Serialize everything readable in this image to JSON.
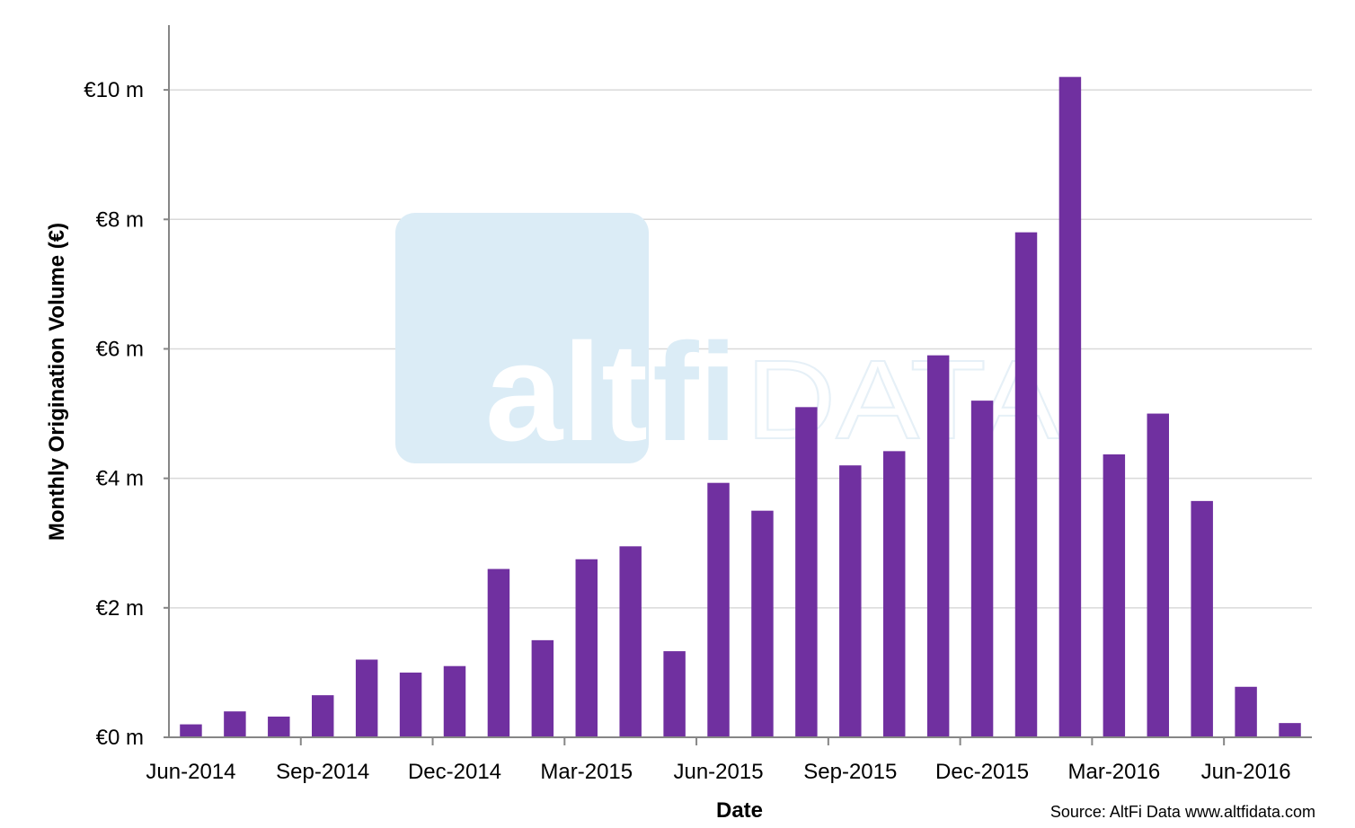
{
  "chart_data": {
    "type": "bar",
    "categories": [
      "Jun-2014",
      "Jul-2014",
      "Aug-2014",
      "Sep-2014",
      "Oct-2014",
      "Nov-2014",
      "Dec-2014",
      "Jan-2015",
      "Feb-2015",
      "Mar-2015",
      "Apr-2015",
      "May-2015",
      "Jun-2015",
      "Jul-2015",
      "Aug-2015",
      "Sep-2015",
      "Oct-2015",
      "Nov-2015",
      "Dec-2015",
      "Jan-2016",
      "Feb-2016",
      "Mar-2016",
      "Apr-2016",
      "May-2016",
      "Jun-2016",
      "Jul-2016"
    ],
    "values": [
      0.2,
      0.4,
      0.32,
      0.65,
      1.2,
      1.0,
      1.1,
      2.6,
      1.5,
      2.75,
      2.95,
      1.33,
      3.93,
      3.5,
      5.1,
      4.2,
      4.42,
      5.9,
      5.2,
      7.8,
      10.2,
      4.37,
      5.0,
      3.65,
      0.78,
      0.22
    ],
    "xlabel": "Date",
    "ylabel": "Monthly Origination Volume (€)",
    "ylim": [
      0,
      11
    ],
    "yticks": [
      0,
      2,
      4,
      6,
      8,
      10
    ],
    "ytick_labels": [
      "€0 m",
      "€2 m",
      "€4 m",
      "€6 m",
      "€8 m",
      "€10 m"
    ],
    "xtick_labels": [
      "Jun-2014",
      "Sep-2014",
      "Dec-2014",
      "Mar-2015",
      "Jun-2015",
      "Sep-2015",
      "Dec-2015",
      "Mar-2016",
      "Jun-2016"
    ],
    "xtick_every": 3,
    "grid": true,
    "bar_color": "#7030a0",
    "gridline_color": "#d9d9d9",
    "axis_color": "#868686"
  },
  "source_text": "Source: AltFi Data www.altfidata.com",
  "watermark": {
    "text_alt": "alt",
    "text_fi": "fi",
    "text_data": "DATA",
    "color_box": "#dbecf6",
    "color_alt": "#ffffff",
    "color_fi": "#dbecf6",
    "color_data": "#e6f0f7"
  }
}
